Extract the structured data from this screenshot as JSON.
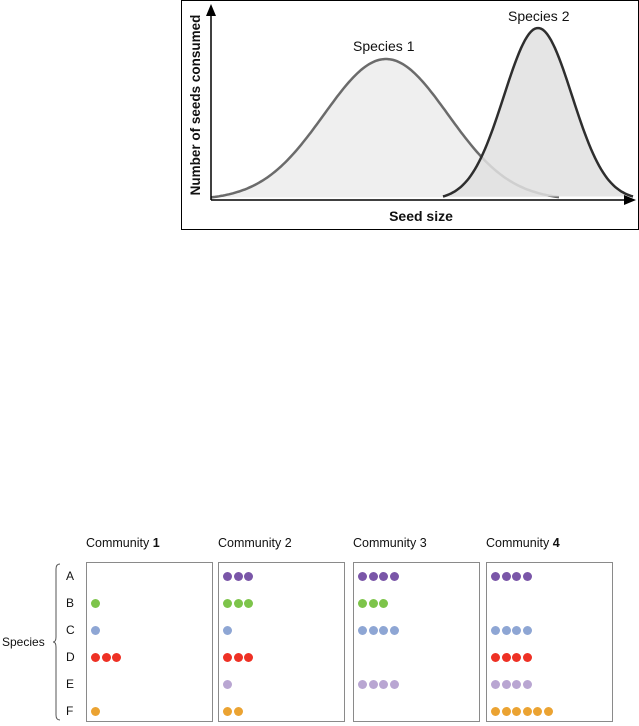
{
  "curve_chart": {
    "ylabel": "Number of seeds consumed",
    "xlabel": "Seed size",
    "series": [
      {
        "name": "Species 1",
        "fill": "#efefef",
        "stroke": "#6b6b6b"
      },
      {
        "name": "Species 2",
        "fill": "#e1e1e1",
        "stroke": "#2e2e2e"
      }
    ]
  },
  "species_axis_label": "Species",
  "species_rows": [
    "A",
    "B",
    "C",
    "D",
    "E",
    "F"
  ],
  "species_colors": {
    "A": "#7a56a8",
    "B": "#7dc44a",
    "C": "#8ea6d4",
    "D": "#ee3125",
    "E": "#b9a6d2",
    "F": "#eba332"
  },
  "communities": [
    {
      "label": "Community ",
      "number": "1",
      "number_bold": true,
      "counts": [
        0,
        1,
        1,
        3,
        0,
        1
      ]
    },
    {
      "label": "Community ",
      "number": "2",
      "number_bold": false,
      "counts": [
        3,
        3,
        1,
        3,
        1,
        2
      ]
    },
    {
      "label": "Community ",
      "number": "3",
      "number_bold": false,
      "counts": [
        4,
        3,
        4,
        0,
        4,
        0
      ]
    },
    {
      "label": "Community ",
      "number": "4",
      "number_bold": true,
      "counts": [
        4,
        0,
        4,
        4,
        4,
        6
      ]
    }
  ]
}
